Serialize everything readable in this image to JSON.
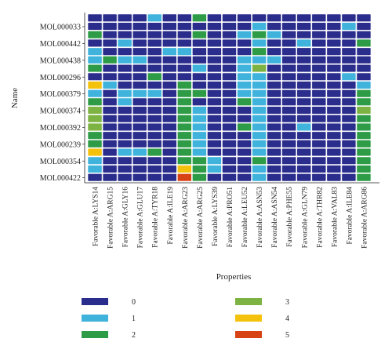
{
  "chart_data": {
    "type": "heatmap",
    "title": "",
    "xlabel": "Properties",
    "ylabel": "Name",
    "x_categories": [
      "Favorable A:LYS14",
      "Favorable A:ARG15",
      "Favorable A:GLY16",
      "Favorable A:GLU17",
      "Favorable A:TYR18",
      "Favorable A:ILE19",
      "Favorable A:ARG23",
      "Favorable A:ARG25",
      "Favorable A:LYS39",
      "Favorable A:PRO51",
      "Favorable A:LEU52",
      "Favorable A:ASN53",
      "Favorable A:ASN54",
      "Favorable A:PHE55",
      "Favorable A:GLN79",
      "Favorable A:THR82",
      "Favorable A:VAL83",
      "Favorable A:ILE84",
      "Favorable A:ARG86"
    ],
    "y_tick_labels": [
      "MOL000033",
      "MOL000442",
      "MOL000438",
      "MOL000296",
      "MOL000379",
      "MOL000374",
      "MOL000392",
      "MOL000239",
      "MOL000354",
      "MOL000422"
    ],
    "row_count": 20,
    "matrix": [
      [
        0,
        0,
        0,
        0,
        1,
        0,
        0,
        2,
        0,
        0,
        0,
        0,
        0,
        0,
        0,
        0,
        0,
        0,
        0
      ],
      [
        0,
        0,
        0,
        0,
        0,
        0,
        0,
        0,
        0,
        0,
        0,
        1,
        0,
        0,
        0,
        0,
        0,
        1,
        0
      ],
      [
        2,
        0,
        0,
        0,
        0,
        0,
        0,
        2,
        0,
        0,
        1,
        2,
        1,
        0,
        0,
        0,
        0,
        0,
        0
      ],
      [
        0,
        0,
        1,
        0,
        0,
        0,
        0,
        0,
        0,
        0,
        0,
        1,
        0,
        0,
        1,
        0,
        0,
        0,
        2
      ],
      [
        1,
        0,
        0,
        0,
        0,
        1,
        1,
        0,
        0,
        0,
        0,
        2,
        0,
        0,
        0,
        0,
        0,
        0,
        0
      ],
      [
        1,
        2,
        1,
        1,
        0,
        0,
        0,
        0,
        0,
        0,
        1,
        1,
        1,
        0,
        0,
        0,
        0,
        0,
        0
      ],
      [
        2,
        0,
        0,
        0,
        0,
        0,
        0,
        1,
        0,
        0,
        1,
        3,
        0,
        0,
        0,
        0,
        0,
        0,
        0
      ],
      [
        0,
        0,
        0,
        0,
        2,
        0,
        0,
        0,
        0,
        0,
        1,
        1,
        0,
        0,
        0,
        0,
        0,
        1,
        0
      ],
      [
        4,
        1,
        0,
        0,
        0,
        0,
        2,
        0,
        0,
        0,
        1,
        1,
        0,
        0,
        0,
        0,
        0,
        0,
        1
      ],
      [
        1,
        0,
        1,
        1,
        1,
        0,
        2,
        2,
        0,
        0,
        1,
        1,
        0,
        0,
        0,
        0,
        0,
        0,
        2
      ],
      [
        2,
        0,
        1,
        0,
        0,
        0,
        2,
        0,
        0,
        0,
        2,
        1,
        0,
        0,
        0,
        0,
        0,
        0,
        2
      ],
      [
        3,
        0,
        0,
        0,
        0,
        0,
        2,
        1,
        0,
        0,
        0,
        1,
        0,
        0,
        0,
        0,
        0,
        0,
        3
      ],
      [
        3,
        0,
        0,
        0,
        0,
        0,
        2,
        1,
        0,
        0,
        0,
        1,
        0,
        0,
        0,
        0,
        0,
        0,
        2
      ],
      [
        3,
        0,
        0,
        0,
        0,
        0,
        2,
        1,
        0,
        0,
        2,
        1,
        0,
        0,
        1,
        0,
        0,
        0,
        2
      ],
      [
        2,
        0,
        0,
        0,
        0,
        0,
        2,
        1,
        0,
        0,
        0,
        1,
        0,
        0,
        0,
        0,
        0,
        0,
        2
      ],
      [
        2,
        0,
        0,
        0,
        0,
        0,
        2,
        1,
        0,
        0,
        0,
        1,
        0,
        0,
        0,
        0,
        0,
        0,
        2
      ],
      [
        4,
        0,
        1,
        1,
        2,
        0,
        2,
        1,
        0,
        0,
        0,
        1,
        0,
        0,
        0,
        0,
        0,
        0,
        2
      ],
      [
        1,
        0,
        0,
        0,
        0,
        0,
        2,
        2,
        1,
        0,
        0,
        2,
        0,
        0,
        0,
        0,
        0,
        0,
        2
      ],
      [
        1,
        0,
        0,
        0,
        0,
        0,
        4,
        2,
        1,
        0,
        0,
        1,
        0,
        0,
        0,
        0,
        0,
        0,
        2
      ],
      [
        0,
        0,
        0,
        0,
        0,
        0,
        5,
        2,
        0,
        0,
        0,
        1,
        0,
        0,
        0,
        0,
        0,
        0,
        2
      ]
    ],
    "legend": [
      {
        "label": "0",
        "color": "#2b2d8c"
      },
      {
        "label": "1",
        "color": "#3fb3dc"
      },
      {
        "label": "2",
        "color": "#2e9c46"
      },
      {
        "label": "3",
        "color": "#7cb342"
      },
      {
        "label": "4",
        "color": "#f4c20d"
      },
      {
        "label": "5",
        "color": "#d84315"
      }
    ],
    "legend_placement": "bottom",
    "grid": false
  }
}
